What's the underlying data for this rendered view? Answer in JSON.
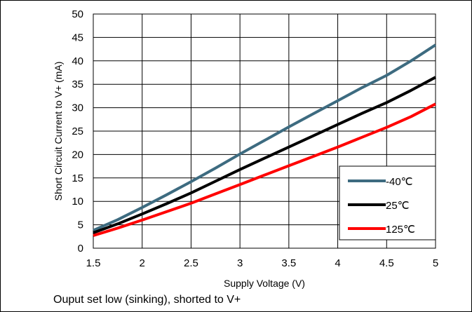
{
  "chart_data": {
    "type": "line",
    "xlabel": "Supply Voltage (V)",
    "ylabel": "Short Circuit Current to V+ (mA)",
    "xlim": [
      1.5,
      5
    ],
    "ylim": [
      0,
      50
    ],
    "x_ticks": [
      "1.5",
      "2",
      "2.5",
      "3",
      "3.5",
      "4",
      "4.5",
      "5"
    ],
    "y_ticks": [
      "0",
      "5",
      "10",
      "15",
      "20",
      "25",
      "30",
      "35",
      "40",
      "45",
      "50"
    ],
    "grid": true,
    "legend_position": "lower-right",
    "series": [
      {
        "name": "-40℃",
        "color": "#3d6b80",
        "x": [
          1.5,
          1.75,
          2.0,
          2.25,
          2.5,
          2.75,
          3.0,
          3.25,
          3.5,
          3.75,
          4.0,
          4.25,
          4.5,
          4.75,
          5.0
        ],
        "y": [
          3.8,
          6.1,
          8.7,
          11.4,
          14.2,
          17.1,
          20.1,
          23.0,
          25.9,
          28.7,
          31.5,
          34.3,
          36.9,
          40.0,
          43.4
        ]
      },
      {
        "name": "25℃",
        "color": "#000000",
        "x": [
          1.5,
          1.75,
          2.0,
          2.25,
          2.5,
          2.75,
          3.0,
          3.25,
          3.5,
          3.75,
          4.0,
          4.25,
          4.5,
          4.75,
          5.0
        ],
        "y": [
          3.3,
          5.2,
          7.3,
          9.5,
          11.8,
          14.3,
          16.8,
          19.2,
          21.6,
          24.0,
          26.4,
          28.8,
          31.1,
          33.7,
          36.5
        ]
      },
      {
        "name": "125℃",
        "color": "#ff0000",
        "x": [
          1.5,
          1.75,
          2.0,
          2.25,
          2.5,
          2.75,
          3.0,
          3.25,
          3.5,
          3.75,
          4.0,
          4.25,
          4.5,
          4.75,
          5.0
        ],
        "y": [
          2.7,
          4.3,
          6.0,
          7.8,
          9.6,
          11.6,
          13.6,
          15.6,
          17.6,
          19.6,
          21.6,
          23.7,
          25.8,
          28.1,
          30.8
        ]
      }
    ]
  },
  "caption": "Ouput set low (sinking), shorted to V+"
}
